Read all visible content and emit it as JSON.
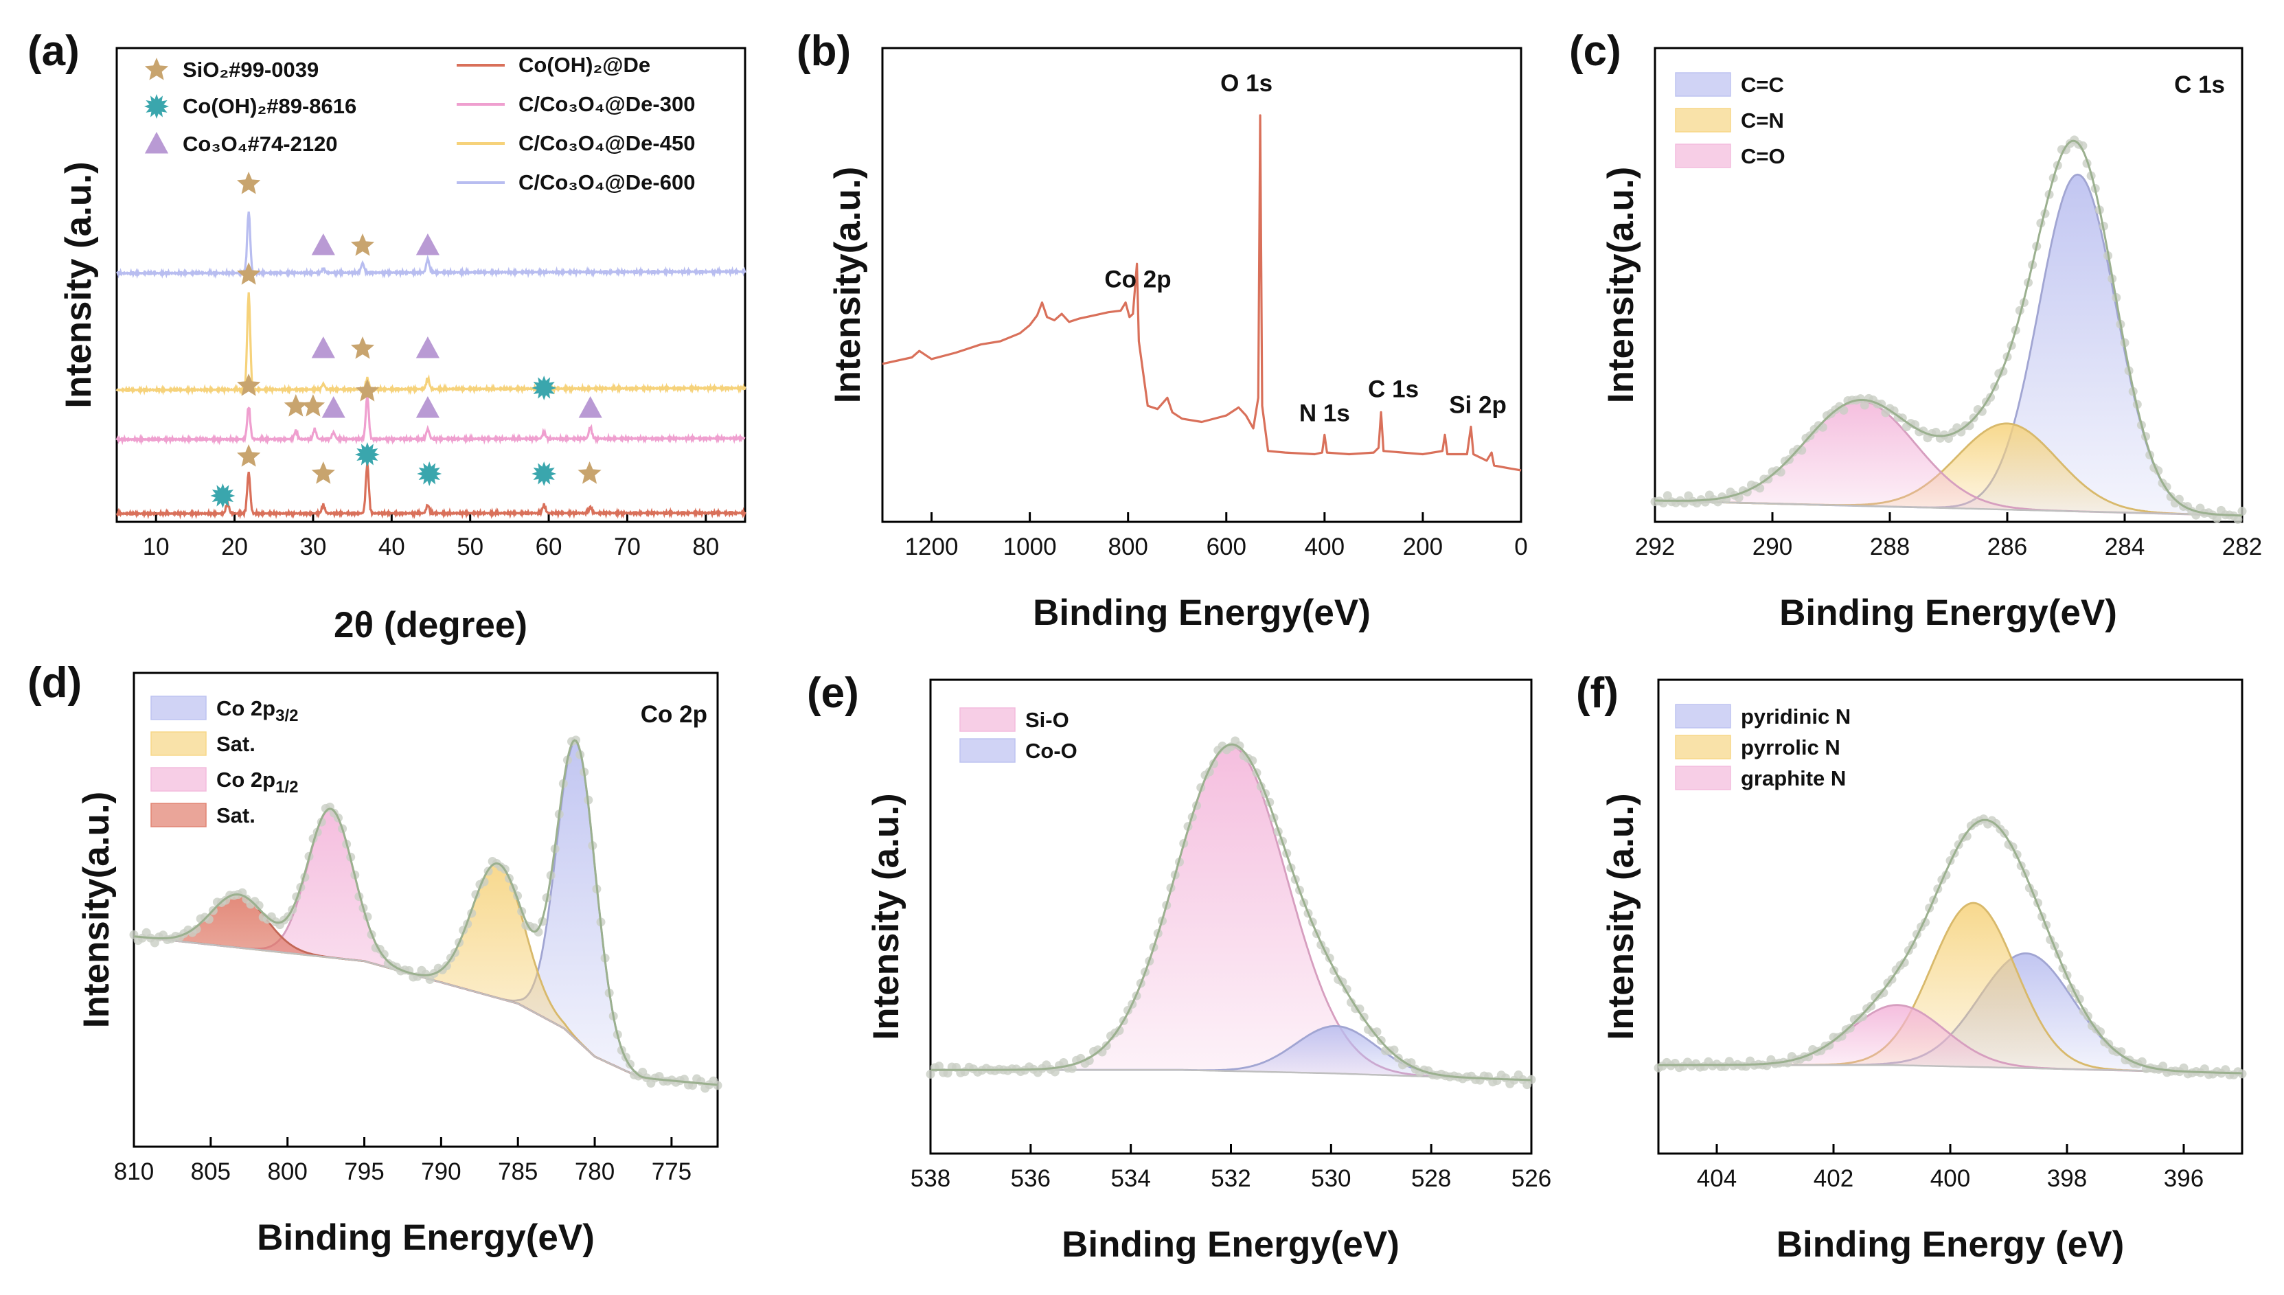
{
  "chart_data": [
    {
      "panel": "(a)",
      "type": "line",
      "xlabel": "2θ (degree)",
      "ylabel": "Intensity (a.u.)",
      "xlim": [
        5,
        85
      ],
      "xticks": [
        "10",
        "20",
        "30",
        "40",
        "50",
        "60",
        "70",
        "80"
      ],
      "legend_markers": [
        {
          "name": "SiO₂#99-0039",
          "shape": "star",
          "color": "#c8a46e"
        },
        {
          "name": "Co(OH)₂#89-8616",
          "shape": "burst",
          "color": "#3aa6ad"
        },
        {
          "name": "Co₃O₄#74-2120",
          "shape": "triangle",
          "color": "#b99ad4"
        }
      ],
      "series": [
        {
          "name": "Co(OH)₂@De",
          "color": "#d9705a",
          "offset": 0,
          "peaks": [
            [
              19.1,
              0.25
            ],
            [
              21.8,
              1.0
            ],
            [
              31.3,
              0.2
            ],
            [
              36.9,
              1.2
            ],
            [
              44.6,
              0.2
            ],
            [
              59.4,
              0.2
            ],
            [
              65.3,
              0.15
            ]
          ]
        },
        {
          "name": "C/Co₃O₄@De-300",
          "color": "#ef9fcf",
          "offset": 1,
          "peaks": [
            [
              21.8,
              1.0
            ],
            [
              27.8,
              0.25
            ],
            [
              30.2,
              0.3
            ],
            [
              32.6,
              0.2
            ],
            [
              36.9,
              1.3
            ],
            [
              44.6,
              0.3
            ],
            [
              59.4,
              0.2
            ],
            [
              65.3,
              0.35
            ]
          ]
        },
        {
          "name": "C/Co₃O₄@De-450",
          "color": "#f6d27a",
          "offset": 2,
          "peaks": [
            [
              21.8,
              2.7
            ],
            [
              31.3,
              0.15
            ],
            [
              36.9,
              0.3
            ],
            [
              44.6,
              0.3
            ]
          ]
        },
        {
          "name": "C/Co₃O₄@De-600",
          "color": "#b8bdf0",
          "offset": 3,
          "peaks": [
            [
              21.8,
              1.6
            ],
            [
              31.3,
              0.1
            ],
            [
              36.3,
              0.25
            ],
            [
              44.6,
              0.35
            ]
          ]
        }
      ],
      "markers": [
        {
          "series": 0,
          "x": 18.5,
          "shape": "burst"
        },
        {
          "series": 0,
          "x": 21.8,
          "shape": "star"
        },
        {
          "series": 0,
          "x": 31.3,
          "shape": "star"
        },
        {
          "series": 0,
          "x": 36.9,
          "shape": "burst"
        },
        {
          "series": 0,
          "x": 44.8,
          "shape": "burst"
        },
        {
          "series": 0,
          "x": 59.4,
          "shape": "burst"
        },
        {
          "series": 0,
          "x": 65.2,
          "shape": "star"
        },
        {
          "series": 1,
          "x": 21.8,
          "shape": "star"
        },
        {
          "series": 1,
          "x": 27.8,
          "shape": "star"
        },
        {
          "series": 1,
          "x": 30.0,
          "shape": "star"
        },
        {
          "series": 1,
          "x": 32.6,
          "shape": "triangle"
        },
        {
          "series": 1,
          "x": 36.9,
          "shape": "star"
        },
        {
          "series": 1,
          "x": 44.6,
          "shape": "triangle"
        },
        {
          "series": 1,
          "x": 59.4,
          "shape": "burst"
        },
        {
          "series": 1,
          "x": 65.3,
          "shape": "triangle"
        },
        {
          "series": 2,
          "x": 21.8,
          "shape": "star"
        },
        {
          "series": 2,
          "x": 31.3,
          "shape": "triangle"
        },
        {
          "series": 2,
          "x": 36.3,
          "shape": "star"
        },
        {
          "series": 2,
          "x": 44.6,
          "shape": "triangle"
        },
        {
          "series": 3,
          "x": 21.8,
          "shape": "star"
        },
        {
          "series": 3,
          "x": 31.3,
          "shape": "triangle"
        },
        {
          "series": 3,
          "x": 36.3,
          "shape": "star"
        },
        {
          "series": 3,
          "x": 44.6,
          "shape": "triangle"
        }
      ]
    },
    {
      "panel": "(b)",
      "type": "line",
      "xlabel": "Binding Energy(eV)",
      "ylabel": "Intensity(a.u.)",
      "xlim": [
        1300,
        0
      ],
      "xticks": [
        "1200",
        "1000",
        "800",
        "600",
        "400",
        "200",
        "0"
      ],
      "color": "#d9705a",
      "spectrum": [
        [
          1300,
          0.66
        ],
        [
          1240,
          0.7
        ],
        [
          1225,
          0.74
        ],
        [
          1200,
          0.69
        ],
        [
          1150,
          0.73
        ],
        [
          1100,
          0.78
        ],
        [
          1060,
          0.8
        ],
        [
          1020,
          0.85
        ],
        [
          1000,
          0.9
        ],
        [
          985,
          0.96
        ],
        [
          975,
          1.04
        ],
        [
          965,
          0.95
        ],
        [
          950,
          0.93
        ],
        [
          935,
          0.97
        ],
        [
          920,
          0.92
        ],
        [
          900,
          0.94
        ],
        [
          870,
          0.96
        ],
        [
          840,
          0.98
        ],
        [
          815,
          0.99
        ],
        [
          805,
          1.04
        ],
        [
          797,
          0.95
        ],
        [
          790,
          0.97
        ],
        [
          782,
          1.28
        ],
        [
          778,
          0.8
        ],
        [
          760,
          0.4
        ],
        [
          740,
          0.38
        ],
        [
          720,
          0.45
        ],
        [
          710,
          0.36
        ],
        [
          690,
          0.32
        ],
        [
          650,
          0.3
        ],
        [
          600,
          0.34
        ],
        [
          575,
          0.39
        ],
        [
          560,
          0.34
        ],
        [
          545,
          0.26
        ],
        [
          535,
          0.45
        ],
        [
          531,
          2.2
        ],
        [
          527,
          0.4
        ],
        [
          515,
          0.12
        ],
        [
          480,
          0.11
        ],
        [
          420,
          0.1
        ],
        [
          405,
          0.11
        ],
        [
          400,
          0.22
        ],
        [
          395,
          0.11
        ],
        [
          350,
          0.1
        ],
        [
          300,
          0.11
        ],
        [
          290,
          0.14
        ],
        [
          285,
          0.36
        ],
        [
          280,
          0.12
        ],
        [
          200,
          0.1
        ],
        [
          160,
          0.12
        ],
        [
          155,
          0.22
        ],
        [
          150,
          0.1
        ],
        [
          110,
          0.1
        ],
        [
          102,
          0.27
        ],
        [
          97,
          0.1
        ],
        [
          70,
          0.06
        ],
        [
          60,
          0.11
        ],
        [
          55,
          0.03
        ],
        [
          20,
          0.01
        ],
        [
          0,
          0.0
        ]
      ],
      "annotations": [
        {
          "text": "O 1s",
          "x": 531
        },
        {
          "text": "Co 2p",
          "x": 780
        },
        {
          "text": "N 1s",
          "x": 400
        },
        {
          "text": "C 1s",
          "x": 285
        },
        {
          "text": "Si 2p",
          "x": 102
        }
      ]
    },
    {
      "panel": "(c)",
      "type": "area",
      "title": "C 1s",
      "xlabel": "Binding Energy(eV)",
      "ylabel": "Intensity(a.u.)",
      "xlim": [
        292,
        282
      ],
      "xticks": [
        "292",
        "290",
        "288",
        "286",
        "284",
        "282"
      ],
      "baseline": [
        [
          292,
          0.02
        ],
        [
          282,
          -0.02
        ]
      ],
      "components": [
        {
          "name": "C=C",
          "center": 284.8,
          "height": 0.9,
          "fwhm": 1.55,
          "color": "#b7bcef"
        },
        {
          "name": "C=N",
          "center": 286.0,
          "height": 0.23,
          "fwhm": 2.0,
          "color": "#f6d27a"
        },
        {
          "name": "C=O",
          "center": 288.5,
          "height": 0.28,
          "fwhm": 2.2,
          "color": "#f3b3d9"
        }
      ]
    },
    {
      "panel": "(d)",
      "type": "area",
      "title": "Co 2p",
      "xlabel": "Binding Energy(eV)",
      "ylabel": "Intensity(a.u.)",
      "xlim": [
        810,
        772
      ],
      "xticks": [
        "810",
        "805",
        "800",
        "795",
        "790",
        "785",
        "780",
        "775"
      ],
      "baseline": [
        [
          810,
          0.42
        ],
        [
          795,
          0.35
        ],
        [
          790,
          0.29
        ],
        [
          785,
          0.23
        ],
        [
          782,
          0.16
        ],
        [
          780,
          0.08
        ],
        [
          777,
          0.02
        ],
        [
          772,
          0.0
        ]
      ],
      "components": [
        {
          "name": "Co 2p3/2",
          "center": 781.2,
          "height": 0.84,
          "fwhm": 3.0,
          "color": "#b7bcef"
        },
        {
          "name": "Sat.",
          "center": 786.3,
          "height": 0.38,
          "fwhm": 4.0,
          "color": "#f6d27a"
        },
        {
          "name": "Co 2p1/2",
          "center": 797.2,
          "height": 0.42,
          "fwhm": 3.5,
          "color": "#f3b3d9"
        },
        {
          "name": "Sat.",
          "center": 803.2,
          "height": 0.15,
          "fwhm": 4.2,
          "color": "#de7562"
        }
      ]
    },
    {
      "panel": "(e)",
      "type": "area",
      "xlabel": "Binding Energy(eV)",
      "ylabel": "Intensity (a.u.)",
      "xlim": [
        538,
        526
      ],
      "xticks": [
        "538",
        "536",
        "534",
        "532",
        "530",
        "528",
        "526"
      ],
      "baseline": [
        [
          538,
          0.03
        ],
        [
          533,
          0.03
        ],
        [
          530,
          0.02
        ],
        [
          526,
          0.0
        ]
      ],
      "components": [
        {
          "name": "Si-O",
          "center": 532.0,
          "height": 0.96,
          "fwhm": 2.6,
          "color": "#f3b3d9"
        },
        {
          "name": "Co-O",
          "center": 529.9,
          "height": 0.14,
          "fwhm": 1.9,
          "color": "#b7bcef"
        }
      ]
    },
    {
      "panel": "(f)",
      "type": "area",
      "xlabel": "Binding Energy (eV)",
      "ylabel": "Intensity (a.u.)",
      "xlim": [
        405,
        395
      ],
      "xticks": [
        "404",
        "402",
        "400",
        "398",
        "396"
      ],
      "baseline": [
        [
          405,
          0.03
        ],
        [
          401,
          0.03
        ],
        [
          399,
          0.02
        ],
        [
          395,
          0.0
        ]
      ],
      "components": [
        {
          "name": "pyridinic N",
          "center": 398.7,
          "height": 0.42,
          "fwhm": 1.9,
          "color": "#b7bcef"
        },
        {
          "name": "pyrrolic N",
          "center": 399.6,
          "height": 0.6,
          "fwhm": 1.7,
          "color": "#f6d27a"
        },
        {
          "name": "graphite N",
          "center": 400.9,
          "height": 0.22,
          "fwhm": 1.9,
          "color": "#f3b3d9"
        }
      ]
    }
  ]
}
